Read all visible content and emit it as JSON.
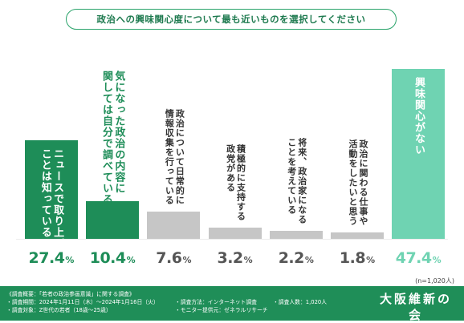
{
  "header": {
    "title": "政治への興味関心度について最も近いものを選択してください"
  },
  "colors": {
    "dark_green": "#1e8d58",
    "light_green": "#6fd3b2",
    "gray": "#c6c6c6"
  },
  "chart_data": {
    "type": "bar",
    "categories": [
      "ニュースで取り上げていることは知っている",
      "気になった政治の内容に関しては自分で調べている",
      "政治について日常的に情報収集を行っている",
      "積極的に支持する政党がある",
      "将来、政治家になることを考えている",
      "政治に関わる仕事や活動をしたいと思う",
      "興味関心がない"
    ],
    "label_lines": [
      [
        "ニュースで取り上げている",
        "ことは知っている"
      ],
      [
        "気になった政治の内容に",
        "関しては自分で調べている"
      ],
      [
        "政治について日常的に",
        "情報収集を行っている"
      ],
      [
        "積極的に支持する",
        "政党がある"
      ],
      [
        "将来、政治家になる",
        "ことを考えている"
      ],
      [
        "政治に関わる仕事や",
        "活動をしたいと思う"
      ],
      [
        "興味関心がない"
      ]
    ],
    "values": [
      27.4,
      10.4,
      7.6,
      3.2,
      2.2,
      1.8,
      47.4
    ],
    "value_labels": [
      "27.4",
      "10.4",
      "7.6",
      "3.2",
      "2.2",
      "1.8",
      "47.4"
    ],
    "unit": "%",
    "bar_colors": [
      "#1e8d58",
      "#1e8d58",
      "#c6c6c6",
      "#c6c6c6",
      "#c6c6c6",
      "#c6c6c6",
      "#6fd3b2"
    ],
    "label_colors": [
      "#ffffff",
      "#1e8d58",
      "#333333",
      "#333333",
      "#333333",
      "#333333",
      "#ffffff"
    ],
    "pct_colors": [
      "#1e8d58",
      "#1e8d58",
      "#555555",
      "#555555",
      "#555555",
      "#555555",
      "#6fd3b2"
    ],
    "ylim": [
      0,
      47.4
    ],
    "sample_note": "(n=1,020人)"
  },
  "footer": {
    "left": [
      "《調査概要：「若者の政治参画意識」に関する調査》",
      "・調査期間：2024年1月11日（木）〜2024年1月16日（火）",
      "・調査対象：Z世代の若者（18歳〜25歳）"
    ],
    "middle": [
      "・調査方法：インターネット調査",
      "・モニター提供元：ゼネラルリサーチ"
    ],
    "right": [
      "・調査人数：1,020人"
    ],
    "logo_text": "大阪維新の会"
  }
}
